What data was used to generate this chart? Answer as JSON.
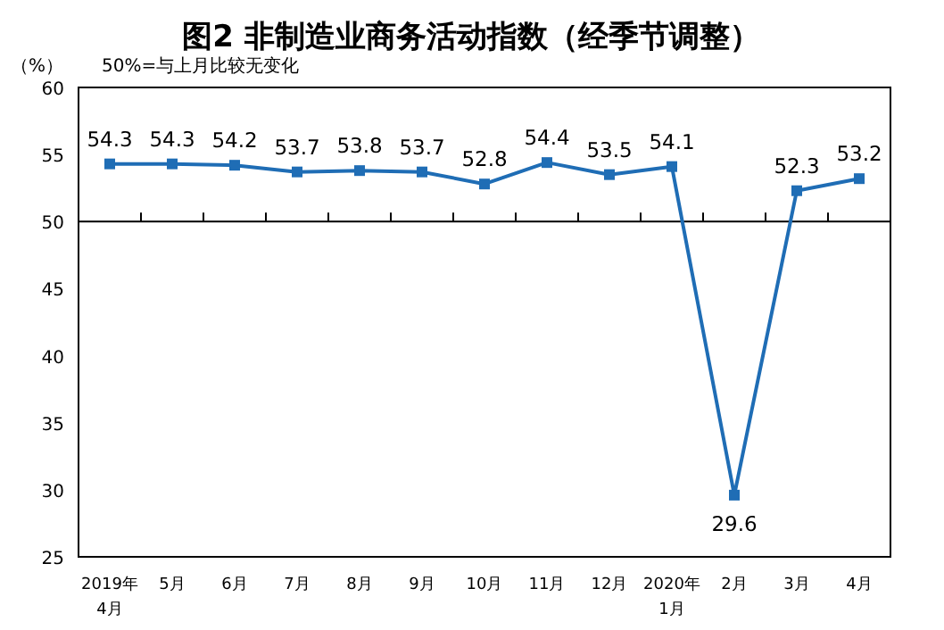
{
  "chart_data": {
    "type": "line",
    "title": "图2 非制造业商务活动指数（经季节调整）",
    "ylabel": "（%）",
    "annotations": [
      "50%=与上月比较无变化"
    ],
    "categories": [
      "2019年\n4月",
      "5月",
      "6月",
      "7月",
      "8月",
      "9月",
      "10月",
      "11月",
      "12月",
      "2020年\n1月",
      "2月",
      "3月",
      "4月"
    ],
    "series": [
      {
        "color": "#1f6db5",
        "values": [
          54.3,
          54.3,
          54.2,
          53.7,
          53.8,
          53.7,
          52.8,
          54.4,
          53.5,
          54.1,
          29.6,
          52.3,
          53.2
        ]
      }
    ],
    "ylim": [
      25,
      60
    ],
    "yticks": [
      25,
      30,
      35,
      40,
      45,
      50,
      55,
      60
    ],
    "ref_lines": [
      {
        "axis": "y",
        "value": 50,
        "color": "#000000"
      }
    ],
    "marker": "square",
    "line_style": "solid",
    "data_labels": true,
    "grid": false
  }
}
